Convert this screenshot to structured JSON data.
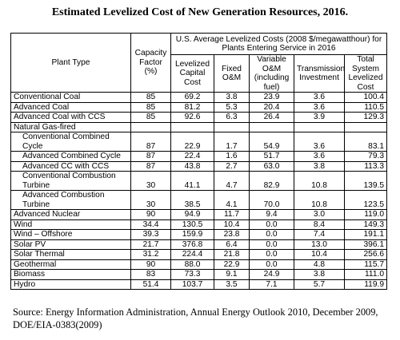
{
  "title": "Estimated Levelized Cost of New Generation Resources, 2016.",
  "header": {
    "plant_type": "Plant Type",
    "capacity_factor": "Capacity Factor (%)",
    "group": "U.S. Average Levelized Costs (2008 $/megawatthour) for Plants Entering Service in 2016",
    "levelized_capital": "Levelized Capital Cost",
    "fixed_om": "Fixed O&M",
    "variable_om": "Variable O&M (including fuel)",
    "transmission": "Transmission Investment",
    "total": "Total System Levelized Cost"
  },
  "rows": [
    {
      "name": "Conventional Coal",
      "cf": "85",
      "cap": "69.2",
      "fixed": "3.8",
      "var": "23.9",
      "trans": "3.6",
      "total": "100.4"
    },
    {
      "name": "Advanced Coal",
      "cf": "85",
      "cap": "81.2",
      "fixed": "5.3",
      "var": "20.4",
      "trans": "3.6",
      "total": "110.5"
    },
    {
      "name": "Advanced Coal with CCS",
      "cf": "85",
      "cap": "92.6",
      "fixed": "6.3",
      "var": "26.4",
      "trans": "3.9",
      "total": "129.3"
    },
    {
      "name": "Natural Gas-fired",
      "cf": "",
      "cap": "",
      "fixed": "",
      "var": "",
      "trans": "",
      "total": ""
    },
    {
      "name": "Conventional Combined Cycle",
      "cf": "87",
      "cap": "22.9",
      "fixed": "1.7",
      "var": "54.9",
      "trans": "3.6",
      "total": "83.1"
    },
    {
      "name": "Advanced Combined Cycle",
      "cf": "87",
      "cap": "22.4",
      "fixed": "1.6",
      "var": "51.7",
      "trans": "3.6",
      "total": "79.3"
    },
    {
      "name": "Advanced CC with CCS",
      "cf": "87",
      "cap": "43.8",
      "fixed": "2.7",
      "var": "63.0",
      "trans": "3.8",
      "total": "113.3"
    },
    {
      "name": "Conventional Combustion Turbine",
      "cf": "30",
      "cap": "41.1",
      "fixed": "4.7",
      "var": "82.9",
      "trans": "10.8",
      "total": "139.5"
    },
    {
      "name": "Advanced Combustion Turbine",
      "cf": "30",
      "cap": "38.5",
      "fixed": "4.1",
      "var": "70.0",
      "trans": "10.8",
      "total": "123.5"
    },
    {
      "name": "Advanced Nuclear",
      "cf": "90",
      "cap": "94.9",
      "fixed": "11.7",
      "var": "9.4",
      "trans": "3.0",
      "total": "119.0"
    },
    {
      "name": "Wind",
      "cf": "34.4",
      "cap": "130.5",
      "fixed": "10.4",
      "var": "0.0",
      "trans": "8.4",
      "total": "149.3"
    },
    {
      "name": "Wind – Offshore",
      "cf": "39.3",
      "cap": "159.9",
      "fixed": "23.8",
      "var": "0.0",
      "trans": "7.4",
      "total": "191.1"
    },
    {
      "name": "Solar PV",
      "cf": "21.7",
      "cap": "376.8",
      "fixed": "6.4",
      "var": "0.0",
      "trans": "13.0",
      "total": "396.1"
    },
    {
      "name": "Solar Thermal",
      "cf": "31.2",
      "cap": "224.4",
      "fixed": "21.8",
      "var": "0.0",
      "trans": "10.4",
      "total": "256.6"
    },
    {
      "name": "Geothermal",
      "cf": "90",
      "cap": "88.0",
      "fixed": "22.9",
      "var": "0.0",
      "trans": "4.8",
      "total": "115.7"
    },
    {
      "name": "Biomass",
      "cf": "83",
      "cap": "73.3",
      "fixed": "9.1",
      "var": "24.9",
      "trans": "3.8",
      "total": "111.0"
    },
    {
      "name": "Hydro",
      "cf": "51.4",
      "cap": "103.7",
      "fixed": "3.5",
      "var": "7.1",
      "trans": "5.7",
      "total": "119.9"
    }
  ],
  "source": "Source:  Energy Information Administration, Annual Energy Outlook 2010, December 2009, DOE/EIA-0383(2009)"
}
